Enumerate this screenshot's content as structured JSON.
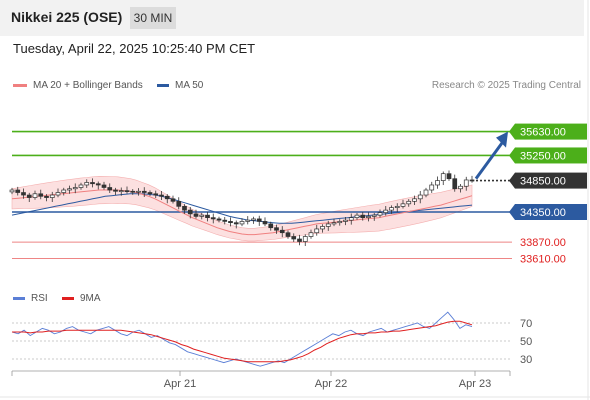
{
  "header": {
    "title": "Nikkei 225 (OSE)",
    "interval": "30 MIN"
  },
  "datetime": "Tuesday, April 22, 2025 10:25:40 PM CET",
  "legend": {
    "ma20": "MA 20 + Bollinger Bands",
    "ma50": "MA 50",
    "ma20_color": "#f08080",
    "ma50_color": "#2c5aa0"
  },
  "credit": "Research © 2025 Trading Central",
  "rsi_legend": {
    "rsi": "RSI",
    "ma9": "9MA",
    "rsi_color": "#5b7fd6",
    "ma9_color": "#e02020"
  },
  "chart_data": [
    {
      "type": "candlestick",
      "title": "Nikkei 225 (OSE)",
      "interval": "30 MIN",
      "ylim": [
        33500,
        35750
      ],
      "levels": [
        {
          "label": "35630.00",
          "value": 35630,
          "kind": "resistance",
          "color": "#4caf1a"
        },
        {
          "label": "35250.00",
          "value": 35250,
          "kind": "resistance",
          "color": "#4caf1a"
        },
        {
          "label": "34850.00",
          "value": 34850,
          "kind": "last price",
          "color": "#333333"
        },
        {
          "label": "34350.00",
          "value": 34350,
          "kind": "pivot",
          "color": "#2c5aa0"
        },
        {
          "label": "33870.00",
          "value": 33870,
          "kind": "support",
          "color": "#e02020"
        },
        {
          "label": "33610.00",
          "value": 33610,
          "kind": "support",
          "color": "#e02020"
        }
      ],
      "arrow": {
        "direction": "up",
        "from": 34850,
        "to": 35630,
        "color": "#2c5aa0"
      },
      "close": [
        34700,
        34660,
        34620,
        34580,
        34640,
        34600,
        34580,
        34620,
        34660,
        34700,
        34720,
        34740,
        34780,
        34820,
        34800,
        34780,
        34740,
        34700,
        34680,
        34690,
        34680,
        34670,
        34680,
        34660,
        34640,
        34620,
        34600,
        34560,
        34520,
        34440,
        34380,
        34320,
        34280,
        34300,
        34260,
        34240,
        34220,
        34200,
        34180,
        34160,
        34200,
        34220,
        34240,
        34200,
        34160,
        34100,
        34060,
        34020,
        33960,
        33920,
        33880,
        33960,
        34020,
        34080,
        34120,
        34160,
        34180,
        34200,
        34220,
        34260,
        34300,
        34260,
        34280,
        34300,
        34340,
        34380,
        34420,
        34440,
        34480,
        34520,
        34560,
        34620,
        34700,
        34780,
        34850,
        34960,
        34880,
        34720,
        34760,
        34860,
        34850
      ],
      "ma20": [
        34560,
        34570,
        34580,
        34590,
        34600,
        34610,
        34620,
        34630,
        34640,
        34650,
        34660,
        34670,
        34680,
        34690,
        34700,
        34700,
        34700,
        34700,
        34690,
        34680,
        34660,
        34630,
        34600,
        34560,
        34510,
        34460,
        34410,
        34360,
        34310,
        34260,
        34220,
        34180,
        34140,
        34100,
        34070,
        34040,
        34020,
        34000,
        33990,
        33990,
        34000,
        34010,
        34020,
        34040,
        34060,
        34080,
        34100,
        34120,
        34140,
        34160,
        34170,
        34180,
        34190,
        34200,
        34210,
        34220,
        34230,
        34240,
        34250,
        34260,
        34280,
        34300,
        34320,
        34340,
        34360,
        34380,
        34400,
        34420,
        34440,
        34460,
        34490,
        34520,
        34550,
        34580,
        34610
      ],
      "ma50": [
        34300,
        34320,
        34340,
        34360,
        34380,
        34400,
        34420,
        34440,
        34460,
        34480,
        34500,
        34520,
        34540,
        34560,
        34580,
        34600,
        34610,
        34620,
        34630,
        34640,
        34640,
        34640,
        34630,
        34620,
        34600,
        34580,
        34550,
        34520,
        34490,
        34460,
        34430,
        34400,
        34370,
        34340,
        34310,
        34280,
        34260,
        34240,
        34220,
        34210,
        34200,
        34190,
        34180,
        34170,
        34170,
        34170,
        34180,
        34190,
        34200,
        34210,
        34220,
        34230,
        34240,
        34250,
        34260,
        34270,
        34280,
        34290,
        34300,
        34310,
        34320,
        34330,
        34340,
        34350,
        34360,
        34370,
        34380,
        34390,
        34400,
        34410,
        34420,
        34430,
        34440,
        34450,
        34460
      ]
    },
    {
      "type": "line",
      "title": "RSI",
      "series_names": [
        "RSI",
        "9MA"
      ],
      "yticks": [
        70,
        50,
        30
      ],
      "ylim": [
        15,
        90
      ],
      "xticks": [
        "Apr 21",
        "Apr 22",
        "Apr 23"
      ],
      "rsi": [
        60,
        58,
        62,
        56,
        60,
        64,
        62,
        58,
        60,
        64,
        66,
        62,
        60,
        58,
        62,
        64,
        66,
        62,
        58,
        56,
        60,
        62,
        58,
        54,
        56,
        52,
        48,
        46,
        42,
        38,
        36,
        34,
        32,
        30,
        28,
        26,
        28,
        30,
        28,
        26,
        24,
        22,
        24,
        26,
        28,
        26,
        30,
        34,
        38,
        42,
        46,
        50,
        54,
        58,
        56,
        60,
        62,
        58,
        56,
        60,
        62,
        64,
        60,
        62,
        64,
        66,
        68,
        70,
        66,
        64,
        70,
        76,
        82,
        74,
        64,
        68,
        66
      ],
      "ma9": [
        60,
        60,
        60,
        59,
        60,
        60,
        61,
        61,
        61,
        62,
        62,
        62,
        62,
        62,
        62,
        62,
        62,
        62,
        62,
        61,
        60,
        59,
        58,
        57,
        55,
        53,
        51,
        49,
        46,
        44,
        41,
        39,
        37,
        35,
        33,
        31,
        30,
        29,
        28,
        27,
        27,
        27,
        27,
        27,
        27,
        28,
        29,
        31,
        33,
        36,
        40,
        43,
        47,
        50,
        53,
        55,
        57,
        58,
        58,
        59,
        59,
        60,
        60,
        61,
        61,
        62,
        63,
        64,
        65,
        66,
        67,
        69,
        71,
        72,
        72,
        70,
        68
      ]
    }
  ]
}
